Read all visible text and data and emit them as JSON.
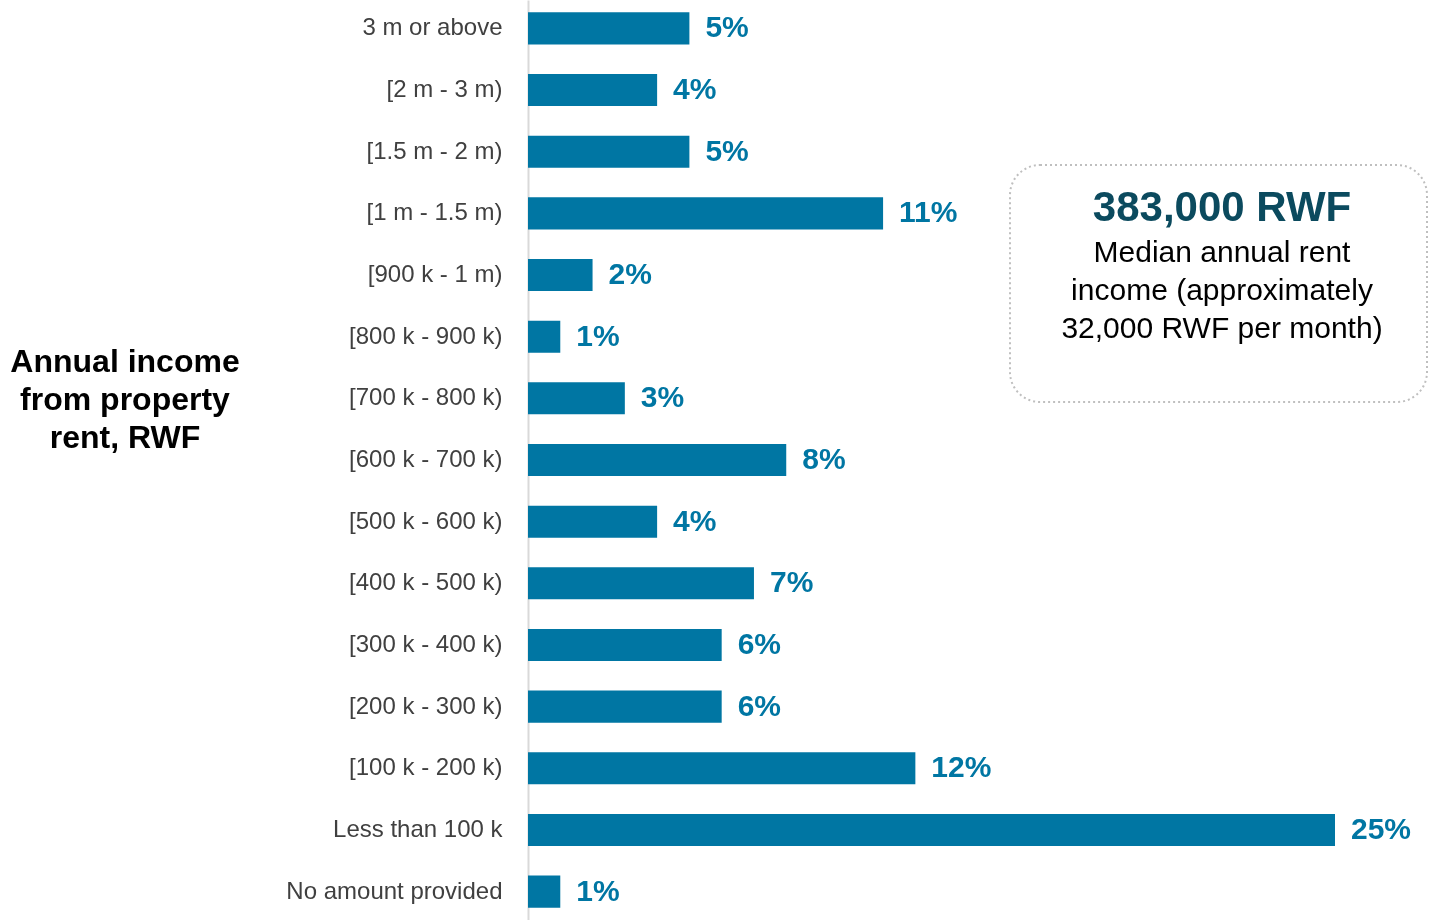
{
  "chart_data": {
    "type": "bar",
    "orientation": "horizontal",
    "ylabel": "Annual income from property rent, RWF",
    "categories": [
      "3 m or above",
      "[2 m - 3 m)",
      "[1.5 m - 2 m)",
      "[1 m - 1.5 m)",
      "[900 k - 1 m)",
      "[800 k - 900 k)",
      "[700 k - 800 k)",
      "[600 k - 700 k)",
      "[500 k - 600 k)",
      "[400 k - 500 k)",
      "[300 k - 400 k)",
      "[200 k - 300 k)",
      "[100 k - 200 k)",
      "Less than 100 k",
      "No amount provided"
    ],
    "values": [
      5,
      4,
      5,
      11,
      2,
      1,
      3,
      8,
      4,
      7,
      6,
      6,
      12,
      25,
      1
    ],
    "value_labels": [
      "5%",
      "4%",
      "5%",
      "11%",
      "2%",
      "1%",
      "3%",
      "8%",
      "4%",
      "7%",
      "6%",
      "6%",
      "12%",
      "25%",
      "1%"
    ],
    "color": "#0076a3",
    "annotations": [
      "383,000 RWF",
      "Median annual rent income (approximately 32,000 RWF per month)"
    ],
    "grid": false
  }
}
